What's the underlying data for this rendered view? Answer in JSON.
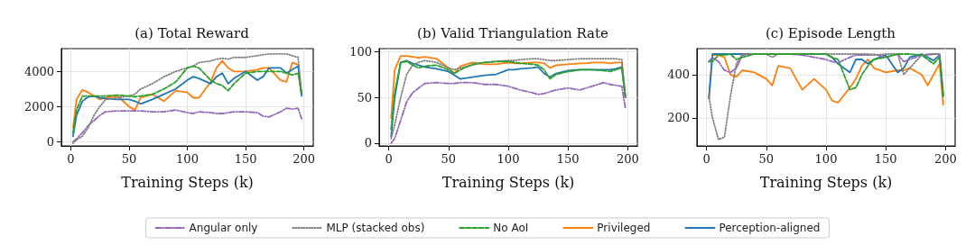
{
  "chart_data": [
    {
      "type": "line",
      "title": "(a) Total Reward",
      "xlabel": "Training Steps (k)",
      "xlim": [
        -8,
        208
      ],
      "xticks": [
        0,
        50,
        100,
        150,
        200
      ],
      "ylim": [
        -250,
        5300
      ],
      "yticks": [
        0,
        2000,
        4000
      ],
      "grid": true,
      "marker": "none",
      "x": [
        2,
        5,
        10,
        15,
        20,
        25,
        30,
        40,
        50,
        55,
        60,
        70,
        80,
        90,
        100,
        105,
        110,
        120,
        125,
        130,
        135,
        140,
        150,
        160,
        165,
        170,
        180,
        185,
        190,
        195,
        198
      ],
      "series": [
        {
          "color": "#9467bd",
          "line_style": "dashdot",
          "values": [
            0,
            150,
            500,
            900,
            1200,
            1500,
            1700,
            1750,
            1750,
            1750,
            1750,
            1700,
            1700,
            1800,
            1650,
            1600,
            1700,
            1650,
            1600,
            1600,
            1650,
            1700,
            1700,
            1650,
            1450,
            1400,
            1700,
            1900,
            1850,
            1900,
            1300
          ]
        },
        {
          "color": "#7f7f7f",
          "line_style": "dotted",
          "values": [
            -100,
            100,
            300,
            800,
            1500,
            2000,
            2400,
            2500,
            2600,
            2700,
            3000,
            3300,
            3700,
            4000,
            4200,
            4300,
            4500,
            4600,
            4700,
            4750,
            4700,
            4800,
            4800,
            4900,
            4950,
            5000,
            5000,
            5000,
            4900,
            4800,
            2700
          ]
        },
        {
          "color": "#2ca02c",
          "line_style": "dashed",
          "values": [
            500,
            1800,
            2600,
            2600,
            2600,
            2600,
            2600,
            2650,
            2600,
            2550,
            2600,
            2700,
            3000,
            3400,
            4200,
            4300,
            4200,
            3500,
            3300,
            3200,
            2900,
            3300,
            3900,
            4000,
            4000,
            4000,
            4000,
            3900,
            3800,
            3900,
            2700
          ]
        },
        {
          "color": "#ff7f0e",
          "line_style": "solid",
          "values": [
            800,
            2400,
            2950,
            2800,
            2600,
            2400,
            2500,
            2600,
            2000,
            1800,
            2500,
            2700,
            2300,
            2900,
            2800,
            2500,
            2500,
            3400,
            4200,
            4600,
            4200,
            4000,
            4000,
            4100,
            4200,
            4200,
            3500,
            3400,
            4500,
            4400,
            2700
          ]
        },
        {
          "color": "#1f77b4",
          "line_style": "solid",
          "values": [
            300,
            1500,
            2300,
            2550,
            2600,
            2500,
            2450,
            2400,
            2400,
            2300,
            2150,
            2400,
            2700,
            3000,
            3500,
            3700,
            3600,
            3300,
            3700,
            3900,
            3300,
            3600,
            4000,
            3500,
            3700,
            4200,
            4200,
            3900,
            4100,
            4300,
            2600
          ]
        }
      ]
    },
    {
      "type": "line",
      "title": "(b) Valid Triangulation Rate",
      "xlabel": "Training Steps (k)",
      "xlim": [
        -8,
        208
      ],
      "xticks": [
        0,
        50,
        100,
        150,
        200
      ],
      "ylim": [
        -3,
        103
      ],
      "yticks": [
        0,
        50,
        100
      ],
      "grid": true,
      "marker": "none",
      "legend": "bottom",
      "x": [
        2,
        5,
        10,
        15,
        20,
        25,
        30,
        40,
        50,
        55,
        60,
        70,
        80,
        90,
        100,
        105,
        110,
        120,
        125,
        130,
        135,
        140,
        150,
        160,
        165,
        170,
        180,
        185,
        190,
        195,
        198
      ],
      "series": [
        {
          "name": "Angular only",
          "color": "#9467bd",
          "line_style": "dashdot",
          "values": [
            0,
            5,
            25,
            45,
            55,
            60,
            65,
            66,
            65,
            65,
            66,
            66,
            64,
            64,
            62,
            60,
            58,
            55,
            53,
            54,
            56,
            58,
            60,
            58,
            60,
            62,
            66,
            64,
            63,
            62,
            38
          ]
        },
        {
          "name": "MLP (stacked obs)",
          "color": "#7f7f7f",
          "line_style": "dotted",
          "values": [
            5,
            20,
            50,
            75,
            85,
            88,
            90,
            88,
            82,
            80,
            82,
            85,
            88,
            89,
            90,
            90,
            91,
            92,
            92,
            91,
            90,
            90,
            91,
            92,
            92,
            92,
            92,
            92,
            92,
            91,
            50
          ]
        },
        {
          "name": "No AoI",
          "color": "#2ca02c",
          "line_style": "dashed",
          "values": [
            15,
            55,
            88,
            89,
            85,
            82,
            84,
            85,
            80,
            76,
            80,
            86,
            88,
            89,
            89,
            88,
            87,
            86,
            85,
            80,
            70,
            75,
            78,
            80,
            80,
            80,
            79,
            78,
            80,
            82,
            50
          ]
        },
        {
          "name": "Privileged",
          "color": "#ff7f0e",
          "line_style": "solid",
          "values": [
            27,
            80,
            95,
            95,
            94,
            93,
            94,
            92,
            82,
            76,
            84,
            88,
            86,
            86,
            88,
            87,
            87,
            88,
            88,
            87,
            82,
            85,
            86,
            87,
            87,
            88,
            88,
            87,
            88,
            88,
            50
          ]
        },
        {
          "name": "Perception-aligned",
          "color": "#1f77b4",
          "line_style": "solid",
          "values": [
            7,
            50,
            88,
            90,
            87,
            85,
            83,
            81,
            78,
            74,
            70,
            72,
            74,
            75,
            80,
            80,
            81,
            82,
            83,
            76,
            72,
            76,
            79,
            80,
            80,
            80,
            80,
            80,
            81,
            83,
            50
          ]
        }
      ]
    },
    {
      "type": "line",
      "title": "(c) Episode Length",
      "xlabel": "Training Steps (k)",
      "xlim": [
        -8,
        208
      ],
      "xticks": [
        0,
        50,
        100,
        150,
        200
      ],
      "ylim": [
        70,
        520
      ],
      "yticks": [
        200,
        400
      ],
      "grid": true,
      "marker": "none",
      "x": [
        2,
        5,
        10,
        15,
        20,
        25,
        30,
        40,
        50,
        55,
        60,
        70,
        80,
        90,
        100,
        105,
        110,
        120,
        125,
        130,
        135,
        140,
        150,
        160,
        165,
        170,
        180,
        185,
        190,
        195,
        198
      ],
      "series": [
        {
          "color": "#9467bd",
          "line_style": "dashdot",
          "values": [
            460,
            480,
            460,
            420,
            410,
            430,
            490,
            495,
            495,
            495,
            495,
            495,
            490,
            480,
            470,
            460,
            455,
            480,
            490,
            490,
            490,
            495,
            480,
            495,
            460,
            470,
            490,
            490,
            495,
            495,
            315
          ]
        },
        {
          "color": "#7f7f7f",
          "line_style": "dotted",
          "values": [
            300,
            200,
            100,
            110,
            300,
            450,
            495,
            495,
            495,
            480,
            495,
            495,
            495,
            495,
            495,
            495,
            495,
            495,
            495,
            495,
            495,
            490,
            495,
            495,
            400,
            430,
            490,
            495,
            495,
            495,
            300
          ]
        },
        {
          "color": "#2ca02c",
          "line_style": "dashed",
          "values": [
            460,
            460,
            490,
            490,
            495,
            470,
            480,
            495,
            495,
            495,
            495,
            495,
            495,
            495,
            495,
            480,
            470,
            330,
            340,
            400,
            440,
            470,
            480,
            495,
            495,
            495,
            490,
            470,
            450,
            480,
            300
          ]
        },
        {
          "color": "#ff7f0e",
          "line_style": "solid",
          "values": [
            290,
            490,
            490,
            480,
            400,
            390,
            420,
            410,
            380,
            350,
            440,
            430,
            330,
            380,
            330,
            280,
            270,
            340,
            380,
            440,
            470,
            430,
            410,
            420,
            420,
            430,
            400,
            350,
            400,
            450,
            260
          ]
        },
        {
          "color": "#1f77b4",
          "line_style": "solid",
          "values": [
            290,
            495,
            495,
            495,
            495,
            495,
            495,
            495,
            495,
            495,
            495,
            495,
            495,
            495,
            495,
            480,
            450,
            410,
            470,
            470,
            450,
            470,
            490,
            410,
            430,
            480,
            495,
            480,
            465,
            490,
            300
          ]
        }
      ]
    }
  ]
}
